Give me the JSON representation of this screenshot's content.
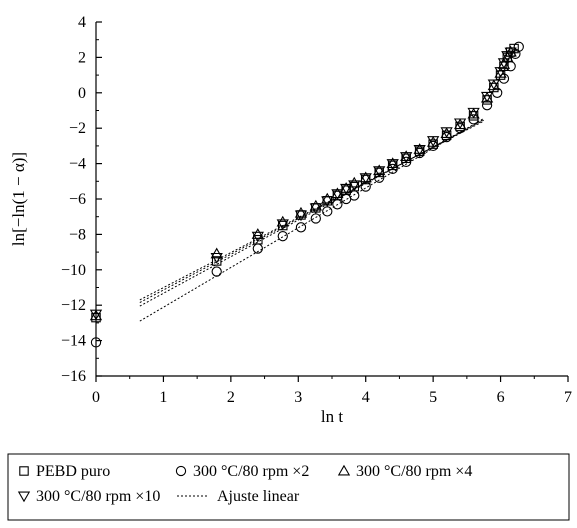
{
  "chart_data": {
    "type": "scatter",
    "title": "",
    "xlabel": "ln t",
    "ylabel": "ln[−ln(1 − α)]",
    "xlim": [
      0,
      7
    ],
    "ylim": [
      -16,
      4
    ],
    "xticks": [
      0,
      1,
      2,
      3,
      4,
      5,
      6,
      7
    ],
    "yticks": [
      -16,
      -14,
      -12,
      -10,
      -8,
      -6,
      -4,
      -2,
      0,
      2,
      4
    ],
    "xtick_labels": [
      "0",
      "1",
      "2",
      "3",
      "4",
      "5",
      "6",
      "7"
    ],
    "ytick_labels": [
      "−16",
      "−14",
      "−12",
      "−10",
      "−8",
      "−6",
      "−4",
      "−2",
      "0",
      "2",
      "4"
    ],
    "grid": false,
    "legend_position": "bottom-outside",
    "series": [
      {
        "name": "PEBD puro",
        "marker": "square",
        "x": [
          0,
          1.79,
          2.4,
          2.77,
          3.04,
          3.26,
          3.43,
          3.58,
          3.71,
          3.83,
          4.0,
          4.2,
          4.4,
          4.6,
          4.8,
          5.0,
          5.2,
          5.4,
          5.6,
          5.8,
          5.9,
          6.0,
          6.05,
          6.1,
          6.15,
          6.2
        ],
        "y": [
          -12.7,
          -9.5,
          -8.3,
          -7.5,
          -6.9,
          -6.5,
          -6.1,
          -5.8,
          -5.5,
          -5.3,
          -4.9,
          -4.5,
          -4.1,
          -3.7,
          -3.3,
          -2.9,
          -2.4,
          -1.9,
          -1.3,
          -0.4,
          0.3,
          1.0,
          1.5,
          2.0,
          2.3,
          2.5
        ]
      },
      {
        "name": "300 °C/80 rpm ×2",
        "marker": "circle",
        "x": [
          0,
          1.79,
          2.4,
          2.77,
          3.04,
          3.26,
          3.43,
          3.58,
          3.71,
          3.83,
          4.0,
          4.2,
          4.4,
          4.6,
          4.8,
          5.0,
          5.2,
          5.4,
          5.6,
          5.8,
          5.95,
          6.05,
          6.15,
          6.22,
          6.27
        ],
        "y": [
          -14.1,
          -10.1,
          -8.8,
          -8.1,
          -7.6,
          -7.1,
          -6.7,
          -6.3,
          -6.0,
          -5.8,
          -5.3,
          -4.8,
          -4.3,
          -3.9,
          -3.4,
          -3.0,
          -2.5,
          -2.0,
          -1.5,
          -0.7,
          0.0,
          0.8,
          1.5,
          2.2,
          2.6
        ]
      },
      {
        "name": "300 °C/80 rpm ×4",
        "marker": "triangle-up",
        "x": [
          0,
          1.79,
          2.4,
          2.77,
          3.04,
          3.26,
          3.43,
          3.58,
          3.71,
          3.83,
          4.0,
          4.2,
          4.4,
          4.6,
          4.8,
          5.0,
          5.2,
          5.4,
          5.6,
          5.8,
          5.9,
          6.0,
          6.05,
          6.1,
          6.15
        ],
        "y": [
          -12.6,
          -9.1,
          -8.0,
          -7.3,
          -6.8,
          -6.4,
          -6.0,
          -5.7,
          -5.4,
          -5.1,
          -4.8,
          -4.4,
          -4.0,
          -3.6,
          -3.2,
          -2.8,
          -2.3,
          -1.8,
          -1.2,
          -0.3,
          0.4,
          1.1,
          1.6,
          2.0,
          2.3
        ]
      },
      {
        "name": "300 °C/80 rpm ×10",
        "marker": "triangle-down",
        "x": [
          0,
          1.79,
          2.4,
          2.77,
          3.04,
          3.26,
          3.43,
          3.58,
          3.71,
          3.83,
          4.0,
          4.2,
          4.4,
          4.6,
          4.8,
          5.0,
          5.2,
          5.4,
          5.6,
          5.8,
          5.9,
          6.0,
          6.05,
          6.1,
          6.15
        ],
        "y": [
          -12.5,
          -9.3,
          -8.1,
          -7.4,
          -6.9,
          -6.5,
          -6.1,
          -5.7,
          -5.4,
          -5.2,
          -4.8,
          -4.4,
          -4.0,
          -3.6,
          -3.2,
          -2.7,
          -2.2,
          -1.7,
          -1.1,
          -0.2,
          0.5,
          1.2,
          1.7,
          2.1,
          2.3
        ]
      }
    ],
    "fit_lines": [
      {
        "name": "Ajuste linear",
        "x": [
          0.65,
          5.75
        ],
        "y": [
          -11.7,
          -1.6
        ]
      },
      {
        "name": "Ajuste linear",
        "x": [
          0.65,
          5.75
        ],
        "y": [
          -11.85,
          -1.55
        ]
      },
      {
        "name": "Ajuste linear",
        "x": [
          0.65,
          5.75
        ],
        "y": [
          -12.05,
          -1.5
        ]
      },
      {
        "name": "Ajuste linear",
        "x": [
          0.65,
          5.75
        ],
        "y": [
          -12.9,
          -1.45
        ]
      }
    ],
    "legend": {
      "row1": [
        {
          "marker": "square",
          "label": "PEBD puro"
        },
        {
          "marker": "circle",
          "label": "300 °C/80 rpm ×2"
        },
        {
          "marker": "triangle-up",
          "label": "300 °C/80 rpm ×4"
        }
      ],
      "row2": [
        {
          "marker": "triangle-down",
          "label": "300 °C/80 rpm ×10"
        },
        {
          "marker": "dotted-line",
          "label": "Ajuste linear"
        }
      ]
    }
  }
}
